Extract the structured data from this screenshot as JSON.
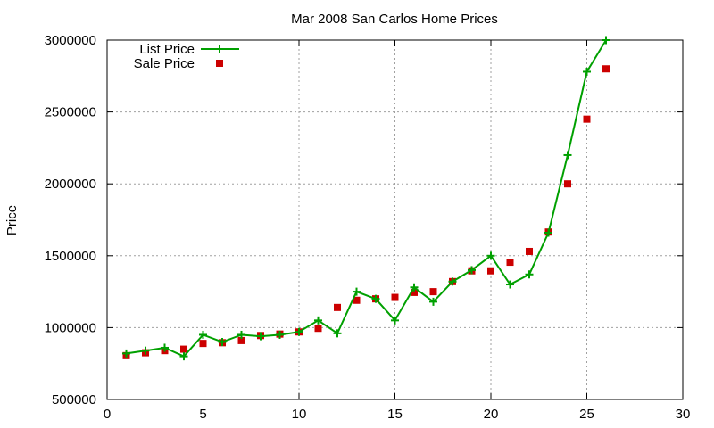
{
  "chart_data": {
    "type": "line",
    "title": "Mar 2008 San Carlos Home Prices",
    "xlabel": "",
    "ylabel": "Price",
    "xlim": [
      0,
      30
    ],
    "ylim": [
      500000,
      3000000
    ],
    "xticks": [
      0,
      5,
      10,
      15,
      20,
      25,
      30
    ],
    "yticks": [
      500000,
      1000000,
      1500000,
      2000000,
      2500000,
      3000000
    ],
    "xtick_labels": [
      "0",
      "5",
      "10",
      "15",
      "20",
      "25",
      "30"
    ],
    "ytick_labels": [
      "500000",
      "1000000",
      "1500000",
      "2000000",
      "2500000",
      "3000000"
    ],
    "grid": true,
    "legend_position": "top-left",
    "series": [
      {
        "name": "List Price",
        "style": "line-with-plus-markers",
        "color": "#00a000",
        "x": [
          1,
          2,
          3,
          4,
          5,
          6,
          7,
          8,
          9,
          10,
          11,
          12,
          13,
          14,
          15,
          16,
          17,
          18,
          19,
          20,
          21,
          22,
          23,
          24,
          25,
          26
        ],
        "values": [
          820000,
          840000,
          860000,
          800000,
          950000,
          900000,
          950000,
          940000,
          950000,
          970000,
          1050000,
          960000,
          1250000,
          1200000,
          1050000,
          1280000,
          1180000,
          1320000,
          1400000,
          1500000,
          1300000,
          1370000,
          1660000,
          2200000,
          2780000,
          3000000
        ]
      },
      {
        "name": "Sale Price",
        "style": "square-markers",
        "color": "#cc0000",
        "x": [
          1,
          2,
          3,
          4,
          5,
          6,
          7,
          8,
          9,
          10,
          11,
          12,
          13,
          14,
          15,
          16,
          17,
          18,
          19,
          20,
          21,
          22,
          23,
          24,
          25,
          26
        ],
        "values": [
          805000,
          825000,
          840000,
          850000,
          890000,
          895000,
          910000,
          945000,
          955000,
          970000,
          995000,
          1140000,
          1190000,
          1200000,
          1210000,
          1245000,
          1250000,
          1320000,
          1395000,
          1395000,
          1455000,
          1530000,
          1665000,
          2000000,
          2450000,
          2800000
        ]
      }
    ]
  }
}
